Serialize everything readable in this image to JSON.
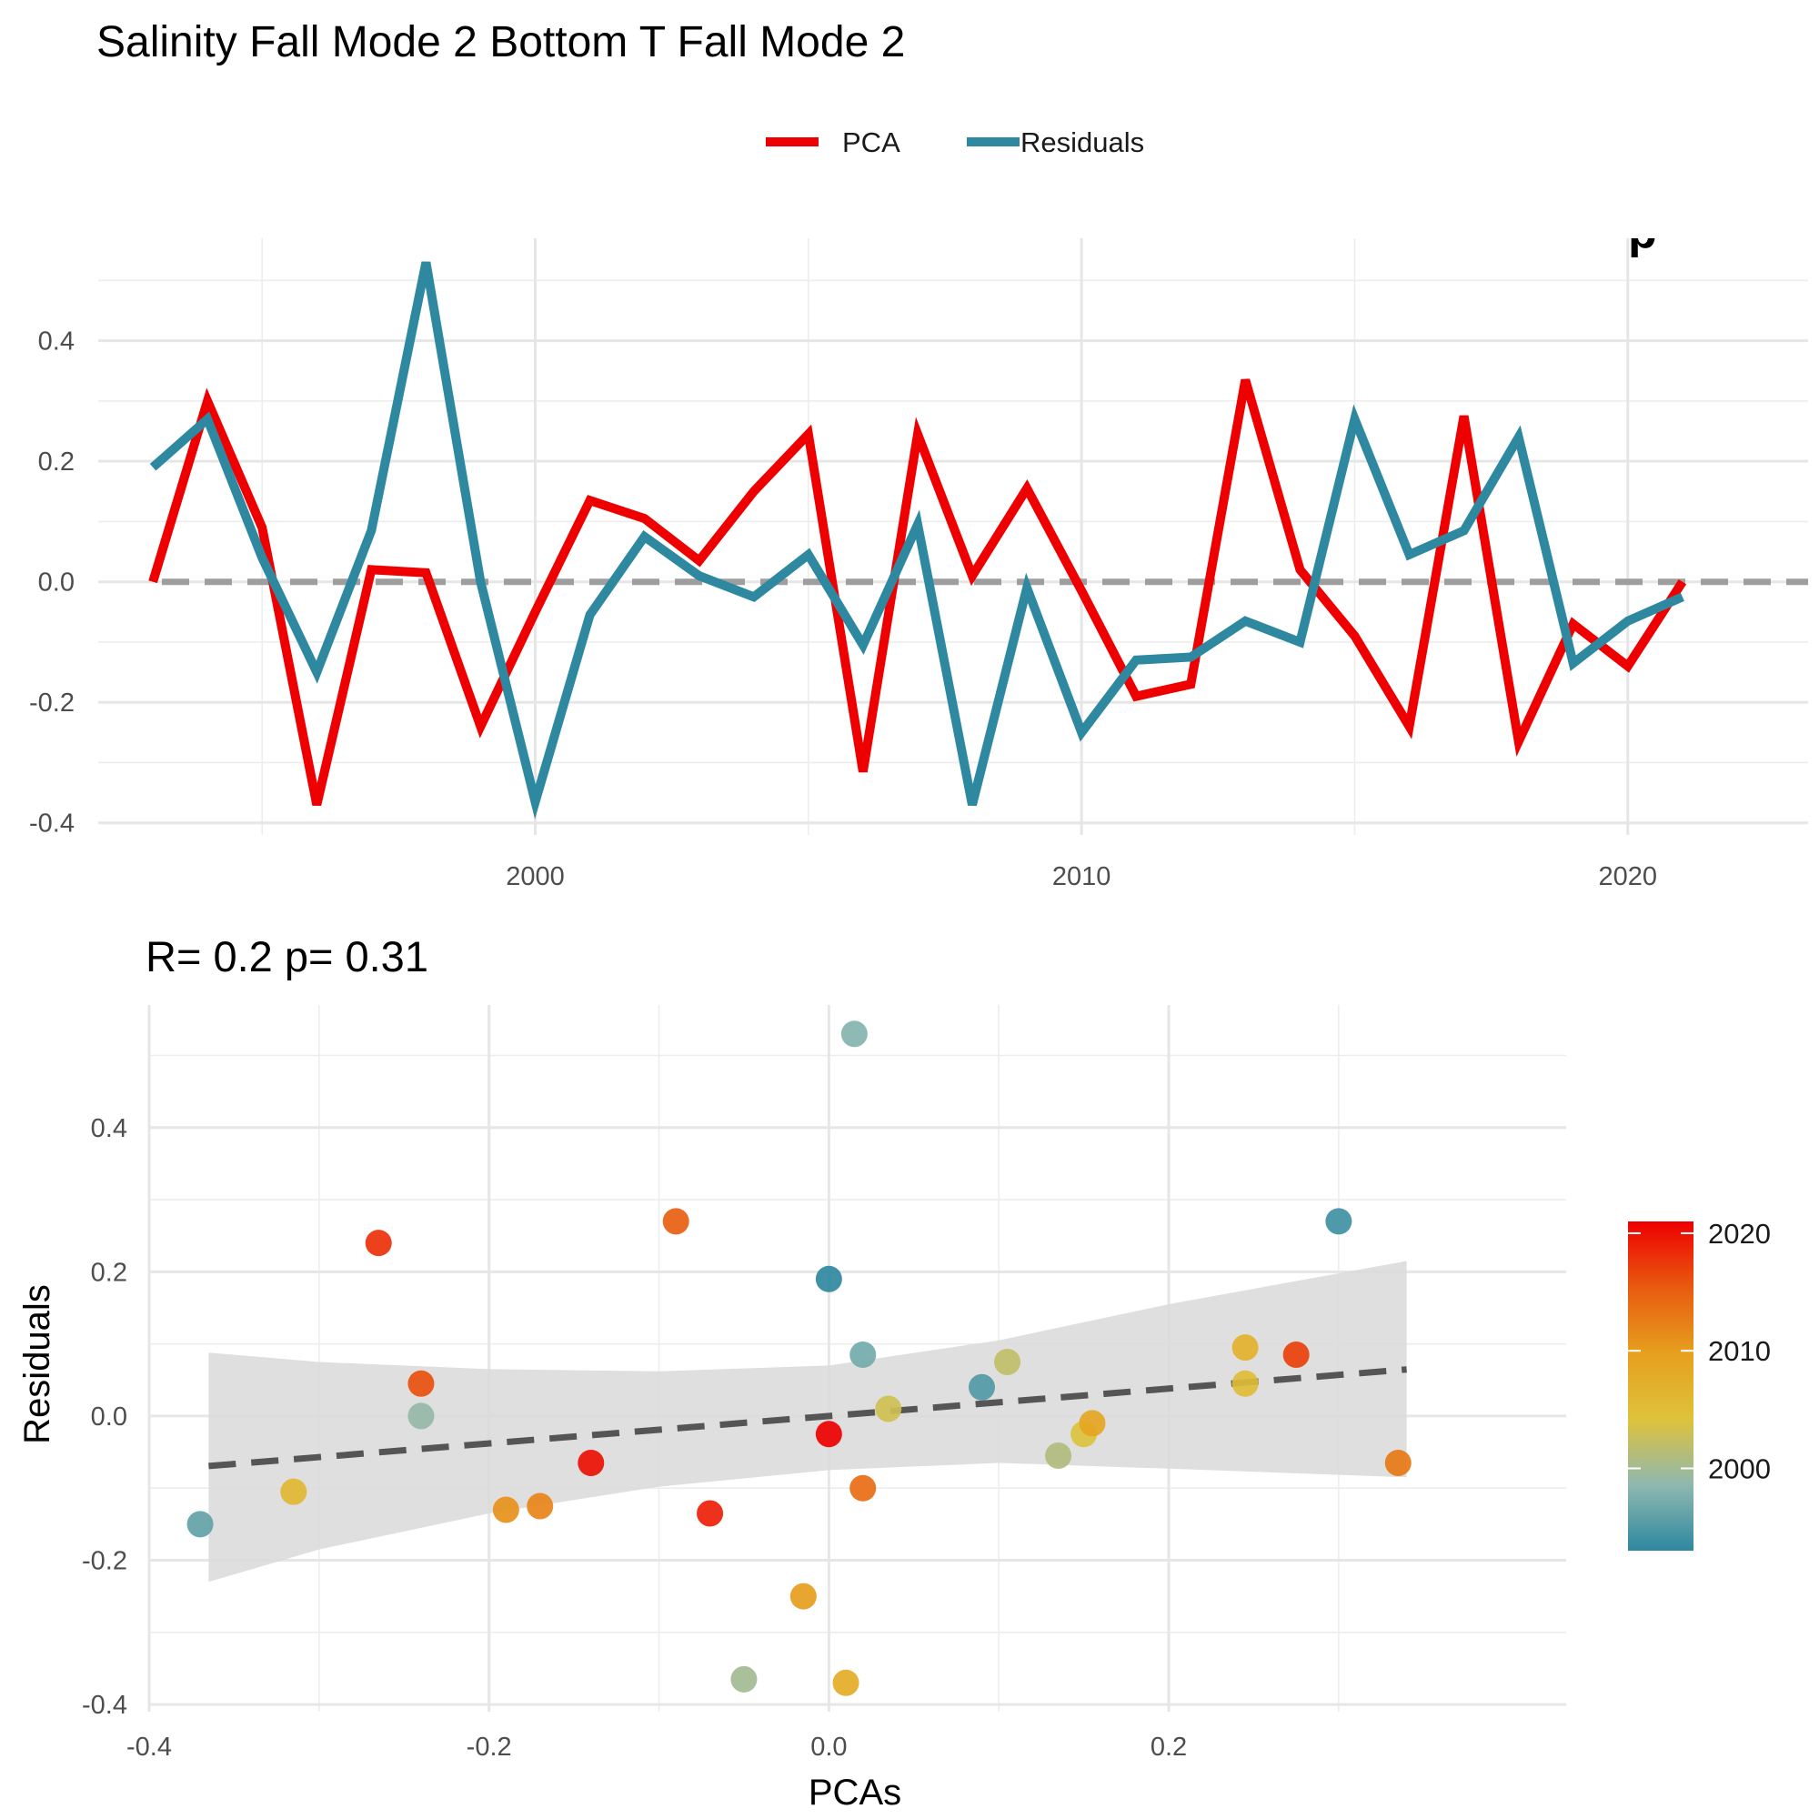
{
  "figure": {
    "title": "Salinity Fall Mode 2 Bottom T Fall Mode 2",
    "legend": {
      "placement": "top-center",
      "items": [
        {
          "label": "PCA",
          "color": "#ee0000"
        },
        {
          "label": "Residuals",
          "color": "#2e88a0"
        }
      ]
    },
    "clipped_corner_text": "p"
  },
  "chart_data": [
    {
      "type": "line",
      "title": "",
      "xlabel": "",
      "ylabel": "",
      "xlim": [
        1992,
        2023.3
      ],
      "ylim": [
        -0.42,
        0.57
      ],
      "x_ticks": [
        2000,
        2010,
        2020
      ],
      "y_ticks": [
        -0.4,
        -0.2,
        0.0,
        0.2,
        0.4
      ],
      "grid": true,
      "reference_line": {
        "y": 0,
        "style": "dashed",
        "color": "#9e9e9e"
      },
      "x": [
        1993,
        1994,
        1995,
        1996,
        1997,
        1998,
        1999,
        2000,
        2001,
        2002,
        2003,
        2004,
        2005,
        2006,
        2007,
        2008,
        2009,
        2010,
        2011,
        2012,
        2013,
        2014,
        2015,
        2016,
        2017,
        2018,
        2019,
        2020,
        2021
      ],
      "series": [
        {
          "name": "PCA",
          "color": "#ee0000",
          "values": [
            0.0,
            0.3,
            0.09,
            -0.37,
            0.02,
            0.015,
            -0.24,
            -0.05,
            0.135,
            0.105,
            0.035,
            0.15,
            0.245,
            -0.315,
            0.245,
            0.01,
            0.155,
            -0.015,
            -0.19,
            -0.17,
            0.335,
            0.02,
            -0.09,
            -0.24,
            0.275,
            -0.265,
            -0.07,
            -0.14,
            0.0
          ]
        },
        {
          "name": "Residuals",
          "color": "#2e88a0",
          "values": [
            0.19,
            0.27,
            0.04,
            -0.15,
            0.085,
            0.53,
            0.0,
            -0.365,
            -0.055,
            0.075,
            0.01,
            -0.025,
            0.045,
            -0.105,
            0.095,
            -0.37,
            -0.01,
            -0.25,
            -0.13,
            -0.125,
            -0.065,
            -0.1,
            0.27,
            0.045,
            0.085,
            0.24,
            -0.135,
            -0.065,
            -0.025
          ]
        }
      ]
    },
    {
      "type": "scatter",
      "title": "R= 0.2  p= 0.31",
      "xlabel": "PCAs",
      "ylabel": "Residuals",
      "xlim": [
        -0.4,
        0.375
      ],
      "ylim": [
        -0.41,
        0.57
      ],
      "x_ticks": [
        -0.4,
        -0.2,
        0.0,
        0.2
      ],
      "y_ticks": [
        -0.4,
        -0.2,
        0.0,
        0.2,
        0.4
      ],
      "grid": true,
      "color_scale": {
        "label_ticks": [
          2000,
          2010,
          2020
        ],
        "range": [
          1993,
          2021
        ],
        "colors": [
          "#2e88a0",
          "#8fb8b0",
          "#dfc23a",
          "#e6a01e",
          "#e85a10",
          "#ee0000"
        ]
      },
      "fit_line": {
        "slope": 0.19,
        "intercept": 0.0,
        "style": "dashed",
        "color": "#555555"
      },
      "confidence_band": {
        "x": [
          -0.365,
          0.34
        ],
        "upper": [
          0.088,
          0.215
        ],
        "lower": [
          -0.23,
          -0.085
        ],
        "upper_knots": [
          [
            -0.365,
            0.088
          ],
          [
            -0.3,
            0.075
          ],
          [
            -0.2,
            0.065
          ],
          [
            -0.1,
            0.062
          ],
          [
            0.0,
            0.07
          ],
          [
            0.1,
            0.105
          ],
          [
            0.2,
            0.155
          ],
          [
            0.34,
            0.215
          ]
        ],
        "lower_knots": [
          [
            -0.365,
            -0.23
          ],
          [
            -0.3,
            -0.185
          ],
          [
            -0.2,
            -0.135
          ],
          [
            -0.1,
            -0.098
          ],
          [
            0.0,
            -0.075
          ],
          [
            0.1,
            -0.065
          ],
          [
            0.2,
            -0.073
          ],
          [
            0.34,
            -0.085
          ]
        ]
      },
      "points": [
        {
          "x": 0.0,
          "y": 0.19,
          "year": 1993
        },
        {
          "x": 0.3,
          "y": 0.27,
          "year": 1994
        },
        {
          "x": 0.09,
          "y": 0.04,
          "year": 1995
        },
        {
          "x": -0.37,
          "y": -0.15,
          "year": 1996
        },
        {
          "x": 0.02,
          "y": 0.085,
          "year": 1997
        },
        {
          "x": 0.015,
          "y": 0.53,
          "year": 1998
        },
        {
          "x": -0.24,
          "y": 0.0,
          "year": 1999
        },
        {
          "x": -0.05,
          "y": -0.365,
          "year": 2000
        },
        {
          "x": 0.135,
          "y": -0.055,
          "year": 2001
        },
        {
          "x": 0.105,
          "y": 0.075,
          "year": 2002
        },
        {
          "x": 0.035,
          "y": 0.01,
          "year": 2003
        },
        {
          "x": 0.15,
          "y": -0.025,
          "year": 2004
        },
        {
          "x": 0.245,
          "y": 0.045,
          "year": 2005
        },
        {
          "x": -0.315,
          "y": -0.105,
          "year": 2006
        },
        {
          "x": 0.245,
          "y": 0.095,
          "year": 2007
        },
        {
          "x": 0.01,
          "y": -0.37,
          "year": 2008
        },
        {
          "x": 0.155,
          "y": -0.01,
          "year": 2009
        },
        {
          "x": -0.015,
          "y": -0.25,
          "year": 2010
        },
        {
          "x": -0.19,
          "y": -0.13,
          "year": 2011
        },
        {
          "x": -0.17,
          "y": -0.125,
          "year": 2012
        },
        {
          "x": 0.335,
          "y": -0.065,
          "year": 2013
        },
        {
          "x": 0.02,
          "y": -0.1,
          "year": 2014
        },
        {
          "x": -0.09,
          "y": 0.27,
          "year": 2015
        },
        {
          "x": -0.24,
          "y": 0.045,
          "year": 2016
        },
        {
          "x": 0.275,
          "y": 0.085,
          "year": 2017
        },
        {
          "x": -0.265,
          "y": 0.24,
          "year": 2018
        },
        {
          "x": -0.07,
          "y": -0.135,
          "year": 2019
        },
        {
          "x": -0.14,
          "y": -0.065,
          "year": 2020
        },
        {
          "x": 0.0,
          "y": -0.025,
          "year": 2021
        }
      ]
    }
  ]
}
